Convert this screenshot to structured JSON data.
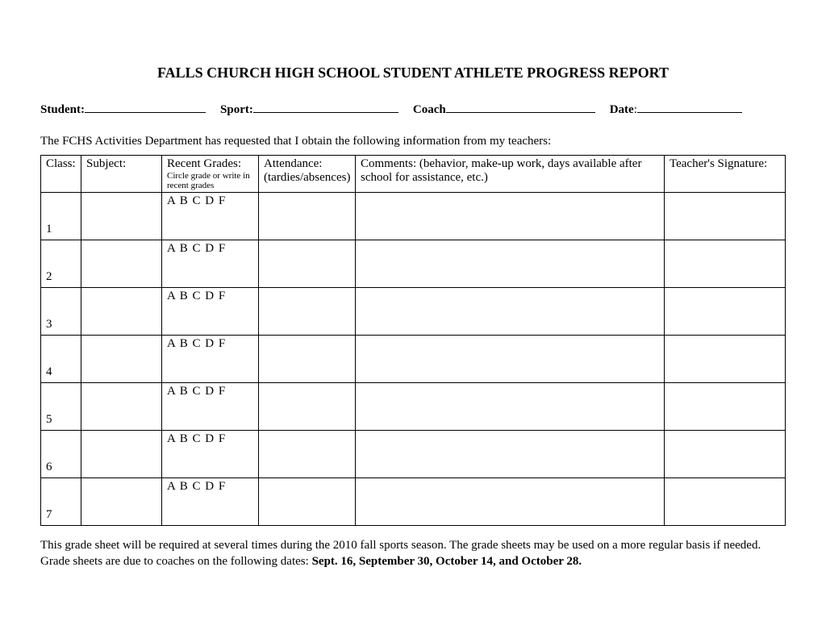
{
  "title": "FALLS CHURCH HIGH SCHOOL STUDENT ATHLETE PROGRESS REPORT",
  "fields": {
    "student_label": "Student:",
    "sport_label": "Sport:",
    "coach_label": "Coach",
    "date_label": "Date",
    "date_colon": ":"
  },
  "intro": "The FCHS Activities Department has requested that I obtain the following information from my teachers:",
  "table": {
    "headers": {
      "class": "Class:",
      "subject": "Subject:",
      "grades": "Recent Grades:",
      "grades_sub": "Circle grade or write in recent grades",
      "attendance": "Attendance: (tardies/absences)",
      "comments": "Comments: (behavior, make-up work, days available after school for assistance, etc.)",
      "signature": "Teacher's Signature:"
    },
    "grade_letters": "A  B C  D  F",
    "rows": [
      {
        "num": "1"
      },
      {
        "num": "2"
      },
      {
        "num": "3"
      },
      {
        "num": "4"
      },
      {
        "num": "5"
      },
      {
        "num": "6"
      },
      {
        "num": "7"
      }
    ]
  },
  "footer": {
    "part1": "This grade sheet will be required at several times during the 2010 fall sports season. The grade sheets may be used on a more regular basis if needed.  Grade sheets are due to coaches on the following dates:  ",
    "part2_bold": "Sept. 16, September 30, October 14, and October 28."
  },
  "colors": {
    "text": "#000000",
    "background": "#ffffff",
    "border": "#000000"
  },
  "typography": {
    "title_fontsize": 18,
    "body_fontsize": 15,
    "sub_fontsize": 11,
    "font_family": "Times New Roman"
  }
}
